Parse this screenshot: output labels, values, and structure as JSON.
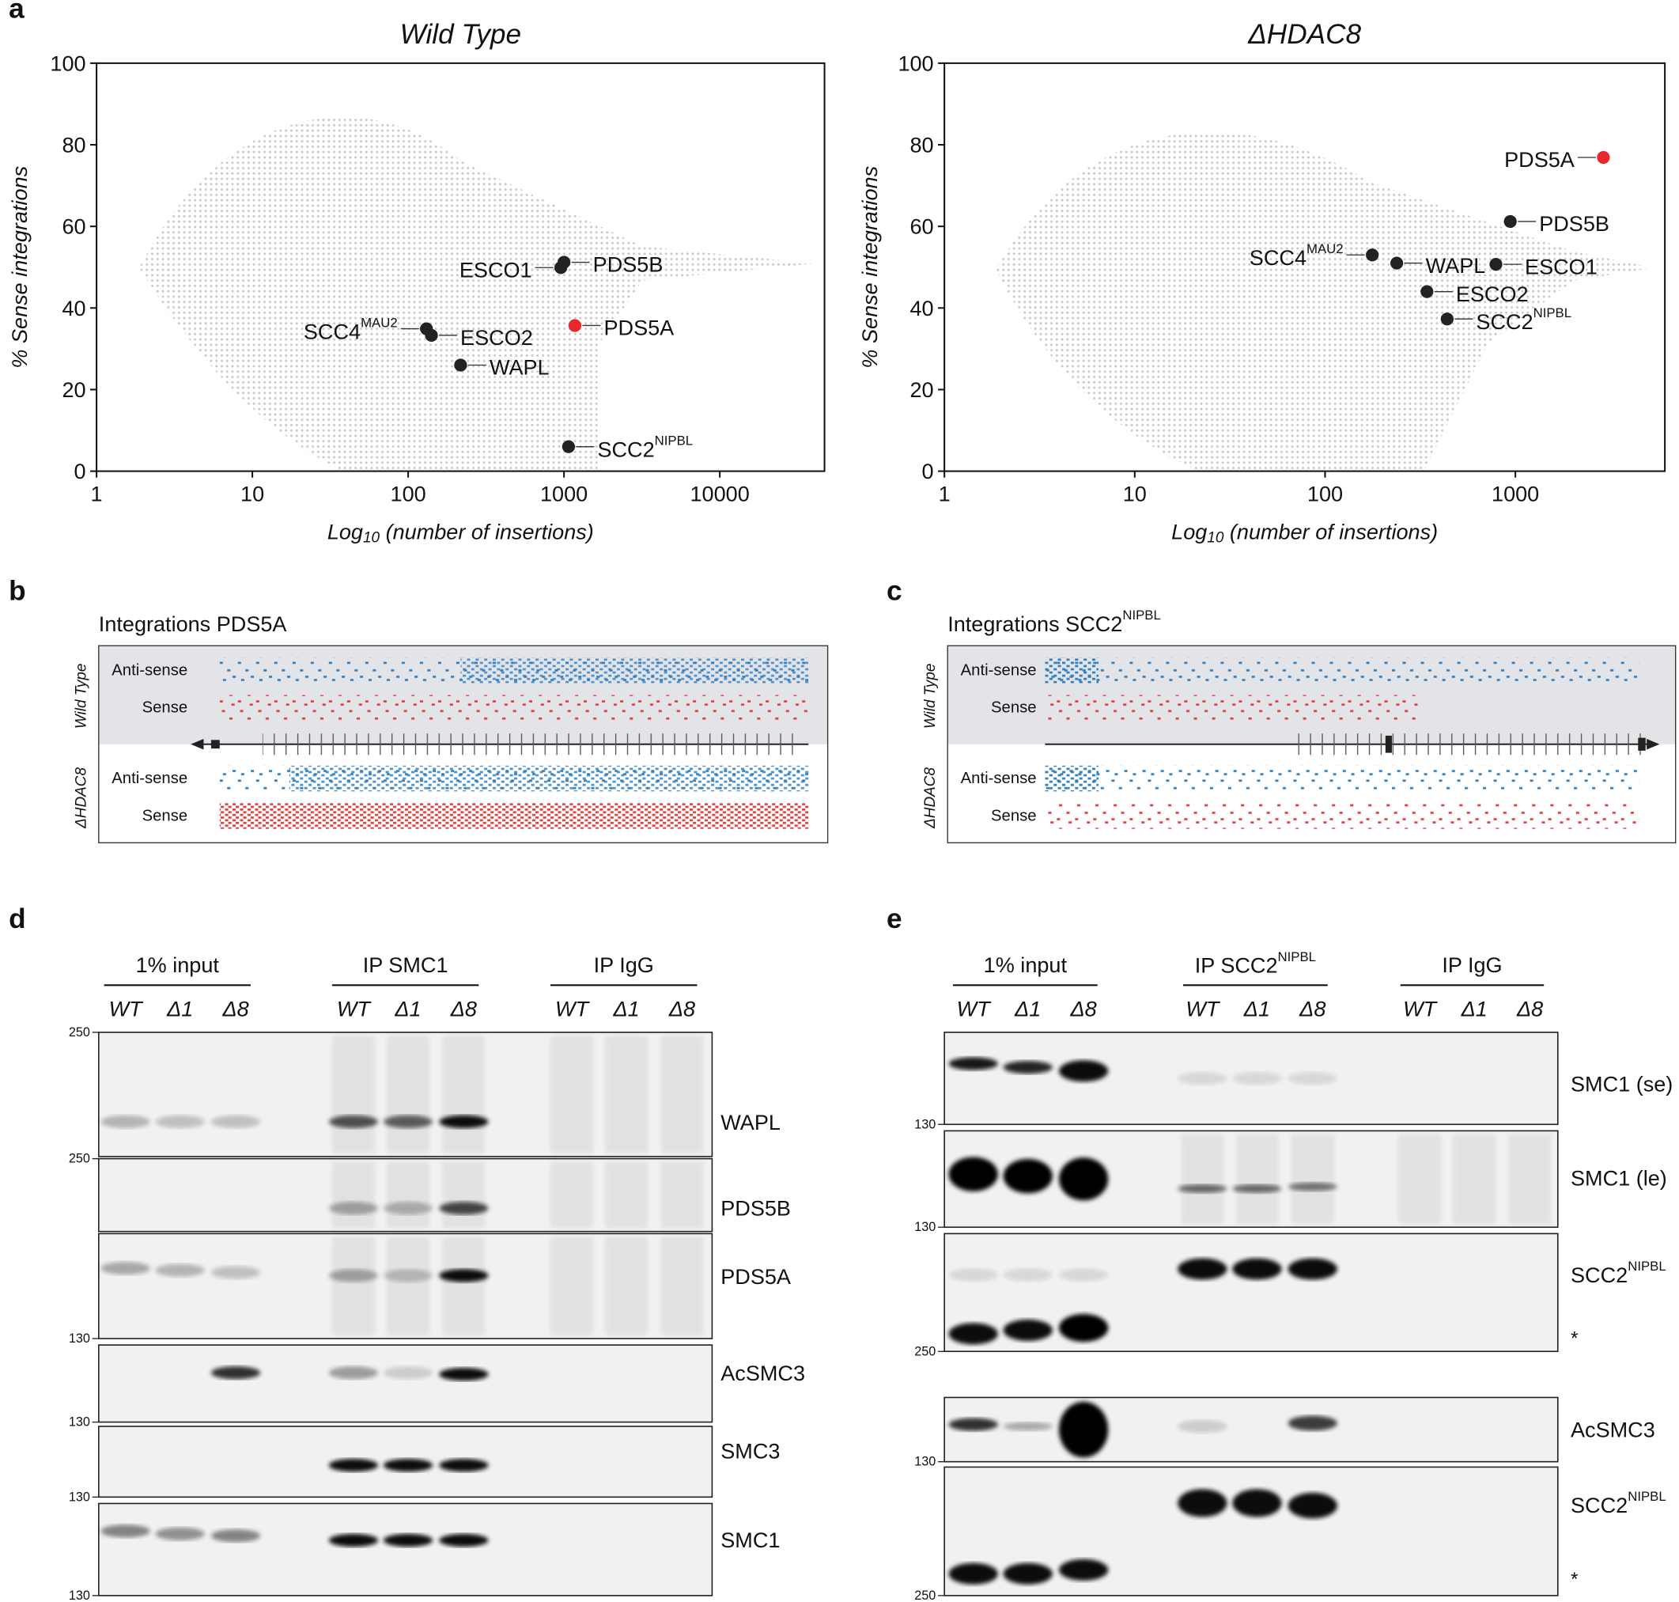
{
  "panel_labels": [
    "a",
    "b",
    "c",
    "d",
    "e"
  ],
  "chart_data": [
    {
      "type": "scatter",
      "title": "Wild Type",
      "x_label": [
        "Log",
        "10",
        " (number of insertions)"
      ],
      "y_label": "% Sense integrations",
      "log_x": true,
      "xlim": [
        1,
        47000
      ],
      "ylim": [
        0,
        100
      ],
      "xticks": [
        1,
        10,
        100,
        1000,
        10000
      ],
      "yticks": [
        0,
        20,
        40,
        60,
        80,
        100
      ],
      "x": [
        955,
        1000,
        131,
        141,
        217,
        1175,
        1070
      ],
      "values": [
        49.9,
        51.2,
        34.9,
        33.3,
        26,
        35.7,
        6
      ],
      "point_labels": [
        "ESCO1",
        "PDS5B",
        {
          "text": "SCC4",
          "sup": "MAU2"
        },
        "ESCO2",
        "WAPL",
        "PDS5A",
        {
          "text": "SCC2",
          "sup": "NIPBL"
        }
      ],
      "point_colors": [
        "#222222",
        "#222222",
        "#222222",
        "#222222",
        "#222222",
        "#e8282b",
        "#222222"
      ]
    },
    {
      "type": "scatter",
      "title": "ΔHDAC8",
      "x_label": [
        "Log",
        "10",
        " (number of insertions)"
      ],
      "y_label": "% Sense integrations",
      "log_x": true,
      "xlim": [
        1,
        6100
      ],
      "ylim": [
        0,
        100
      ],
      "xticks": [
        1,
        10,
        100,
        1000
      ],
      "yticks": [
        0,
        20,
        40,
        60,
        80,
        100
      ],
      "x": [
        2900,
        940,
        177,
        238,
        790,
        343,
        438
      ],
      "values": [
        76.9,
        61.2,
        53,
        51,
        50.7,
        44,
        37.3
      ],
      "point_labels": [
        "PDS5A",
        "PDS5B",
        {
          "text": "SCC4",
          "sup": "MAU2"
        },
        "WAPL",
        "ESCO1",
        "ESCO2",
        {
          "text": "SCC2",
          "sup": "NIPBL"
        }
      ],
      "point_colors": [
        "#e8282b",
        "#222222",
        "#222222",
        "#222222",
        "#222222",
        "#222222",
        "#222222"
      ]
    }
  ],
  "integrations": [
    {
      "title": {
        "text": "Integrations PDS5A"
      },
      "groups": [
        {
          "name": "Wild Type",
          "rows": [
            "Anti-sense",
            "Sense"
          ]
        },
        {
          "name": "ΔHDAC8",
          "rows": [
            "Anti-sense",
            "Sense"
          ]
        }
      ]
    },
    {
      "title": {
        "text": "Integrations SCC2",
        "sup": "NIPBL"
      },
      "groups": [
        {
          "name": "Wild Type",
          "rows": [
            "Anti-sense",
            "Sense"
          ]
        },
        {
          "name": "ΔHDAC8",
          "rows": [
            "Anti-sense",
            "Sense"
          ]
        }
      ]
    }
  ],
  "blots": [
    {
      "groups": [
        "1% input",
        "IP SMC1",
        "IP IgG"
      ],
      "lanes": [
        "WT",
        "Δ1",
        "Δ8",
        "WT",
        "Δ1",
        "Δ8",
        "WT",
        "Δ1",
        "Δ8"
      ],
      "markers": [
        250,
        250,
        130,
        130,
        130,
        130
      ],
      "labels": [
        "WAPL",
        "PDS5B",
        "PDS5A",
        "AcSMC3",
        "SMC3",
        "SMC1"
      ]
    },
    {
      "groups": [
        "1% input",
        {
          "text": "IP SCC2",
          "sup": "NIPBL"
        },
        "IP IgG"
      ],
      "lanes": [
        "WT",
        "Δ1",
        "Δ8",
        "WT",
        "Δ1",
        "Δ8",
        "WT",
        "Δ1",
        "Δ8"
      ],
      "markers": [
        130,
        130,
        250,
        130,
        250
      ],
      "labels": [
        "SMC1 (se)",
        "SMC1 (le)",
        {
          "text": "SCC2",
          "sup": "NIPBL"
        },
        "AcSMC3",
        {
          "text": "SCC2",
          "sup": "NIPBL"
        }
      ],
      "stars": [
        null,
        null,
        "*",
        null,
        "*"
      ]
    }
  ]
}
